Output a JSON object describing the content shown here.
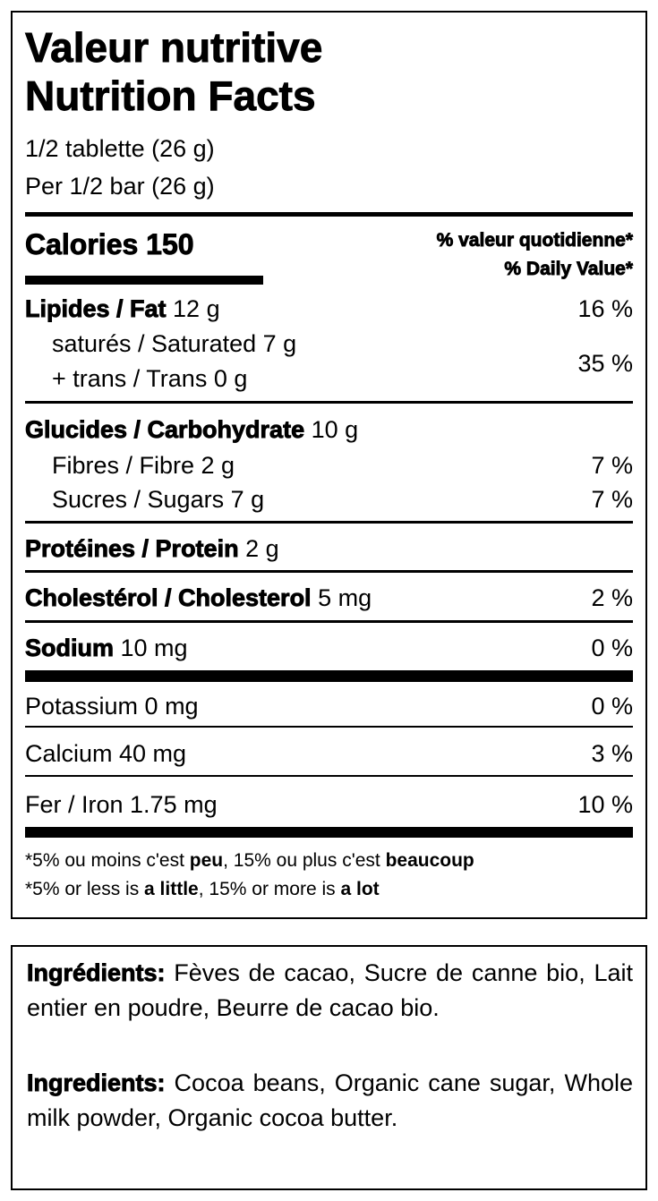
{
  "title_fr": "Valeur nutritive",
  "title_en": "Nutrition Facts",
  "serving_fr": "1/2 tablette (26 g)",
  "serving_en": "Per 1/2 bar (26 g)",
  "calories_label": "Calories 150",
  "dv_fr": "% valeur quotidienne*",
  "dv_en": "% Daily Value*",
  "fat": {
    "label": "Lipides / Fat",
    "amount": " 12 g",
    "dv": "16 %"
  },
  "saturated": "saturés / Saturated 7 g",
  "trans": "+ trans / Trans 0 g",
  "sat_trans_dv": "35 %",
  "carb": {
    "label": "Glucides / Carbohydrate",
    "amount": " 10 g"
  },
  "fibre": {
    "label": "Fibres / Fibre 2 g",
    "dv": "7 %"
  },
  "sugars": {
    "label": "Sucres / Sugars 7 g",
    "dv": "7 %"
  },
  "protein": {
    "label": "Protéines / Protein",
    "amount": " 2 g"
  },
  "cholesterol": {
    "label": "Cholestérol / Cholesterol",
    "amount": " 5 mg",
    "dv": "2 %"
  },
  "sodium": {
    "label": "Sodium",
    "amount": " 10 mg",
    "dv": "0 %"
  },
  "potassium": {
    "label": "Potassium 0 mg",
    "dv": "0 %"
  },
  "calcium": {
    "label": "Calcium 40 mg",
    "dv": "3 %"
  },
  "iron": {
    "label": "Fer / Iron 1.75 mg",
    "dv": "10 %"
  },
  "foot_fr": {
    "a": "*5% ou moins c'est ",
    "b": "peu",
    "c": ", 15% ou plus c'est ",
    "d": "beaucoup"
  },
  "foot_en": {
    "a": "*5% or less is ",
    "b": "a little",
    "c": ", 15% or more is ",
    "d": "a lot"
  },
  "ingredients_fr": {
    "label": "Ingrédients:",
    "text": " Fèves de cacao, Sucre de canne bio, Lait entier en poudre, Beurre de cacao bio."
  },
  "ingredients_en": {
    "label": "Ingredients:",
    "text": " Cocoa beans, Organic cane sugar, Whole milk powder, Organic cocoa butter."
  }
}
